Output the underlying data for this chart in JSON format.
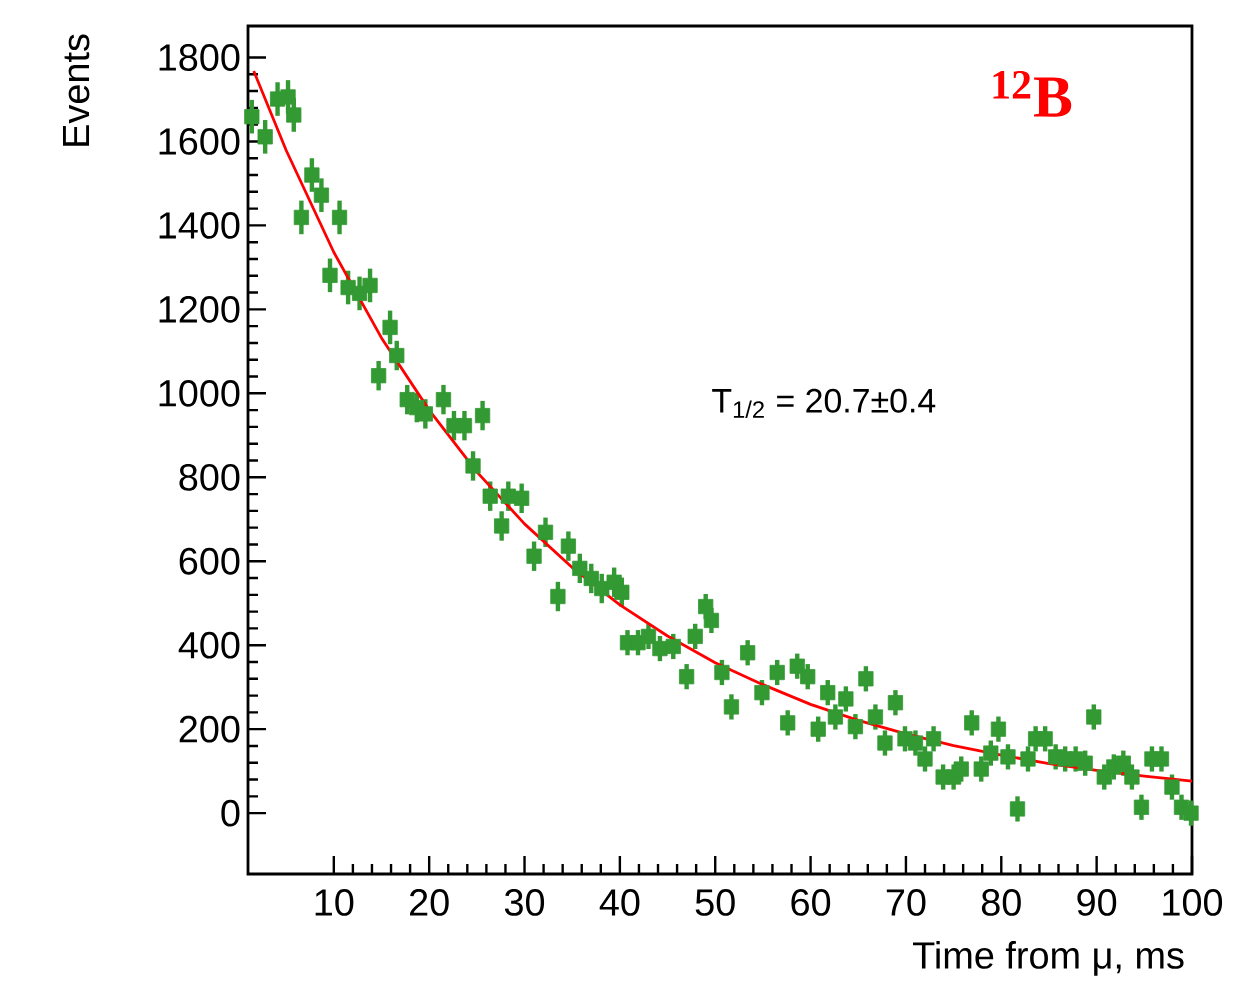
{
  "chart_data": {
    "type": "scatter",
    "xlabel": "Time from μ, ms",
    "ylabel": "Events",
    "annotations": [
      "$^{12}$B",
      "T$_{1/2}$ = 20.7±0.4"
    ],
    "xlim": [
      1,
      100
    ],
    "ylim": [
      -145,
      1875
    ],
    "xticks": [
      10,
      20,
      30,
      40,
      50,
      60,
      70,
      80,
      90,
      100
    ],
    "yticks": [
      0,
      200,
      400,
      600,
      800,
      1000,
      1200,
      1400,
      1600,
      1800
    ],
    "grid": false,
    "series": [
      {
        "color": "#339933",
        "marker": "square",
        "x": [
          1.4,
          2.8,
          4.1,
          5.2,
          5.8,
          6.6,
          7.7,
          8.7,
          9.6,
          10.6,
          11.5,
          12.7,
          13.8,
          14.7,
          15.9,
          16.6,
          17.7,
          18.7,
          19.6,
          21.5,
          22.6,
          23.7,
          24.6,
          25.6,
          26.4,
          27.6,
          28.3,
          29.7,
          31,
          32.2,
          33.5,
          34.6,
          35.8,
          37,
          38.1,
          39.4,
          40.2,
          40.8,
          41.9,
          43,
          44.2,
          45.6,
          47,
          47.9,
          49,
          49.6,
          50.7,
          51.7,
          53.4,
          54.9,
          56.5,
          57.6,
          58.6,
          59.7,
          60.8,
          61.8,
          62.6,
          63.7,
          64.7,
          65.8,
          66.8,
          67.8,
          68.9,
          69.9,
          71,
          72,
          72.9,
          73.9,
          75,
          75.8,
          76.9,
          77.9,
          78.9,
          79.7,
          80.7,
          81.7,
          82.8,
          83.6,
          84.6,
          85.7,
          86.7,
          87.8,
          88.8,
          89.7,
          90.8,
          91.8,
          92.8,
          93.7,
          94.7,
          95.8,
          96.8,
          97.9,
          98.9,
          99.9
        ],
        "values": [
          1659,
          1611,
          1701,
          1706,
          1663,
          1419,
          1520,
          1472,
          1281,
          1419,
          1252,
          1238,
          1257,
          1042,
          1157,
          1090,
          985,
          966,
          951,
          985,
          923,
          923,
          827,
          947,
          755,
          684,
          755,
          750,
          612,
          669,
          516,
          636,
          583,
          559,
          535,
          550,
          526,
          406,
          406,
          421,
          392,
          397,
          325,
          421,
          492,
          459,
          335,
          253,
          382,
          287,
          335,
          215,
          350,
          325,
          200,
          287,
          229,
          272,
          206,
          320,
          229,
          167,
          263,
          177,
          167,
          129,
          177,
          86,
          86,
          105,
          215,
          105,
          143,
          200,
          134,
          10,
          129,
          177,
          177,
          134,
          129,
          129,
          119,
          229,
          86,
          110,
          119,
          86,
          14,
          129,
          129,
          62,
          14,
          0
        ],
        "errors": [
          40,
          40,
          40,
          40,
          40,
          40,
          40,
          40,
          40,
          40,
          40,
          40,
          40,
          35,
          40,
          35,
          35,
          35,
          35,
          35,
          35,
          35,
          35,
          35,
          35,
          35,
          35,
          35,
          35,
          35,
          35,
          35,
          35,
          35,
          35,
          35,
          35,
          30,
          30,
          30,
          30,
          30,
          30,
          30,
          30,
          30,
          30,
          30,
          30,
          30,
          30,
          30,
          30,
          30,
          30,
          30,
          30,
          30,
          30,
          30,
          30,
          30,
          30,
          30,
          30,
          30,
          30,
          30,
          30,
          30,
          30,
          30,
          30,
          30,
          30,
          30,
          30,
          30,
          30,
          30,
          30,
          30,
          30,
          30,
          30,
          30,
          30,
          30,
          30,
          30,
          30,
          30,
          30,
          30
        ]
      },
      {
        "type": "line",
        "color": "#ff0000",
        "marker": "none",
        "x": [
          1.6,
          5,
          10,
          15,
          20,
          25,
          30,
          35,
          40,
          45,
          50,
          55,
          60,
          65,
          70,
          75,
          80,
          85,
          90,
          95,
          100
        ],
        "values": [
          1768,
          1579,
          1336,
          1132,
          960,
          813,
          689,
          585,
          496,
          422,
          358,
          306,
          259,
          221,
          189,
          161,
          138,
          118,
          102,
          88,
          76
        ]
      }
    ]
  }
}
